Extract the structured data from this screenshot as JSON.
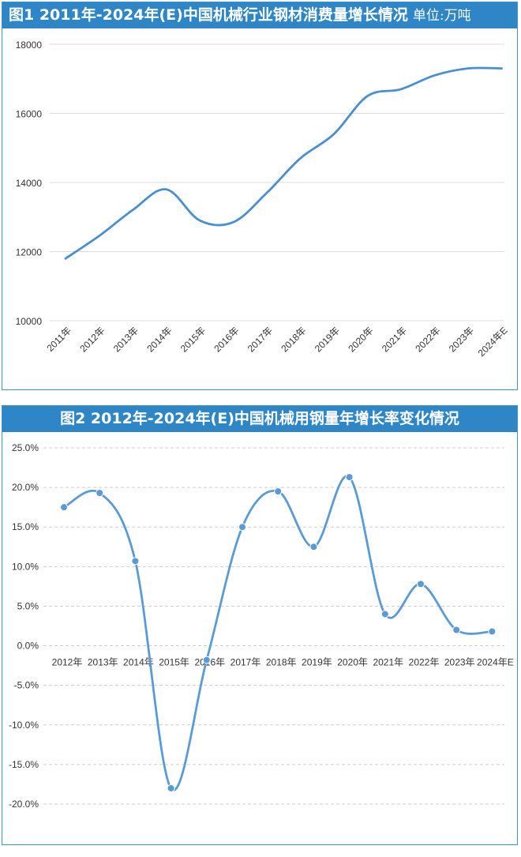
{
  "charts": [
    {
      "title": "图1 2011年-2024年(E)中国机械行业钢材消费量增长情况",
      "unit": "单位:万吨"
    },
    {
      "title": "图2 2012年-2024年(E)中国机械用钢量年增长率变化情况"
    }
  ],
  "chart_data": [
    {
      "type": "line",
      "title": "图1 2011年-2024年(E)中国机械行业钢材消费量增长情况",
      "unit": "单位:万吨",
      "categories": [
        "2011年",
        "2012年",
        "2013年",
        "2014年",
        "2015年",
        "2016年",
        "2017年",
        "2018年",
        "2019年",
        "2020年",
        "2021年",
        "2022年",
        "2023年",
        "2024年E"
      ],
      "values": [
        11800,
        12450,
        13200,
        13800,
        12900,
        12850,
        13700,
        14700,
        15400,
        16500,
        16700,
        17100,
        17300,
        17300
      ],
      "yticks": [
        "10000",
        "12000",
        "14000",
        "16000",
        "18000"
      ],
      "ylim": [
        10000,
        18000
      ],
      "grid": true,
      "smooth": true,
      "markers": false,
      "line_color": "#4a8fd0"
    },
    {
      "type": "line",
      "title": "图2 2012年-2024年(E)中国机械用钢量年增长率变化情况",
      "categories": [
        "2012年",
        "2013年",
        "2014年",
        "2015年",
        "2016年",
        "2017年",
        "2018年",
        "2019年",
        "2020年",
        "2021年",
        "2022年",
        "2023年",
        "2024年E"
      ],
      "values": [
        17.5,
        19.3,
        10.7,
        -18.0,
        -1.8,
        15.0,
        19.5,
        12.5,
        21.3,
        4.0,
        7.8,
        2.0,
        1.8
      ],
      "yticks": [
        "25.0%",
        "20.0%",
        "15.0%",
        "10.0%",
        "5.0%",
        "0.0%",
        "-5.0%",
        "-10.0%",
        "-15.0%",
        "-20.0%"
      ],
      "ylim": [
        -20,
        25
      ],
      "grid": true,
      "smooth": true,
      "markers": true,
      "line_color": "#5b9bd5"
    }
  ]
}
